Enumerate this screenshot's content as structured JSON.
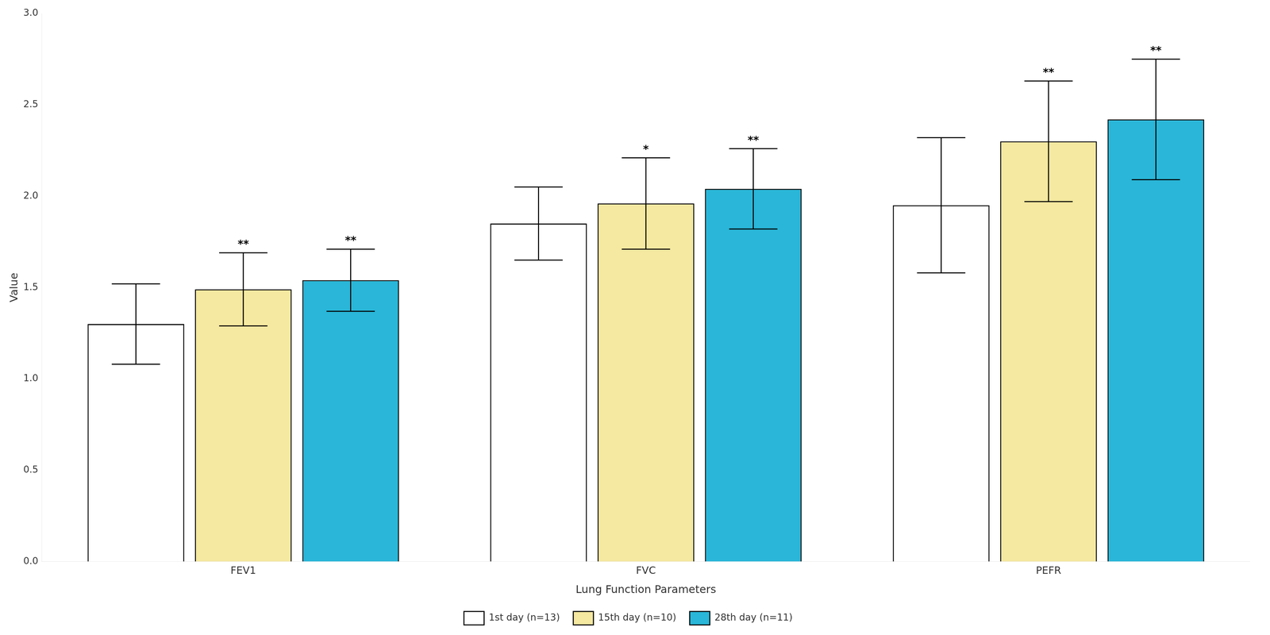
{
  "chart_data": {
    "type": "bar",
    "categories": [
      "FEV1",
      "FVC",
      "PEFR"
    ],
    "series": [
      {
        "name": "1st day (n=13)",
        "color": "#ffffff",
        "values": [
          1.3,
          1.85,
          1.95
        ],
        "errors": [
          0.22,
          0.2,
          0.37
        ]
      },
      {
        "name": "15th day (n=10)",
        "color": "#f5e8a0",
        "values": [
          1.49,
          1.96,
          2.3
        ],
        "errors": [
          0.2,
          0.25,
          0.33
        ],
        "significance": [
          "**",
          "*",
          "**"
        ]
      },
      {
        "name": "28th day (n=11)",
        "color": "#29b6d8",
        "values": [
          1.54,
          2.04,
          2.42
        ],
        "errors": [
          0.17,
          0.22,
          0.33
        ],
        "significance": [
          "**",
          "**",
          "**"
        ]
      }
    ],
    "xlabel": "Lung Function Parameters",
    "ylabel": "Value",
    "ylim": [
      0,
      3.0
    ],
    "yticks": [
      {
        "value": 0,
        "label": "0.0"
      },
      0.5,
      {
        "value": 1.0,
        "label": "1.0"
      },
      1.5,
      {
        "value": 2.0,
        "label": "2.0"
      },
      2.5,
      {
        "value": 3.0,
        "label": "3.0"
      }
    ],
    "grid": false,
    "legend": "bottom"
  }
}
